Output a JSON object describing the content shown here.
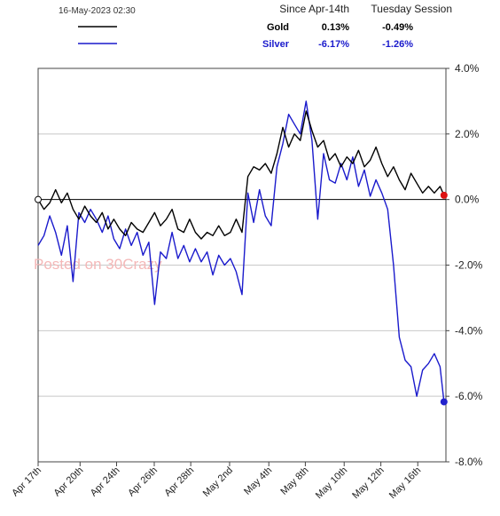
{
  "header": {
    "timestamp": "16-May-2023 02:30",
    "col_since": "Since Apr-14th",
    "col_session": "Tuesday Session"
  },
  "legend": [
    {
      "name": "Gold",
      "since": "0.13%",
      "session": "-0.49%",
      "color": "#000000"
    },
    {
      "name": "Silver",
      "since": "-6.17%",
      "session": "-1.26%",
      "color": "#1a1acc"
    }
  ],
  "watermark": {
    "text": "Posted on 30Crazy",
    "color": "#f4b8b8"
  },
  "chart_data": {
    "type": "line",
    "title": "",
    "xlabel": "",
    "ylabel": "",
    "ylim": [
      -8,
      4
    ],
    "y_ticks": [
      4,
      2,
      0,
      -2,
      -4,
      -6,
      -8
    ],
    "y_tick_labels": [
      "4.0%",
      "2.0%",
      "0.0%",
      "-2.0%",
      "-4.0%",
      "-6.0%",
      "-8.0%"
    ],
    "y_axis_side": "right",
    "x_range": [
      0,
      21
    ],
    "x_tick_labels": [
      "Apr 17th",
      "Apr 20th",
      "Apr 24th",
      "Apr 26th",
      "Apr 28th",
      "May 2nd",
      "May 4th",
      "May 8th",
      "May 10th",
      "May 12th",
      "May 16th"
    ],
    "x_tick_positions": [
      0,
      2.16,
      4.04,
      5.98,
      7.86,
      9.86,
      11.88,
      13.76,
      15.76,
      17.65,
      19.55
    ],
    "grid": true,
    "legend_position": "top",
    "series": [
      {
        "name": "Gold",
        "color": "#000000",
        "points": [
          [
            0,
            0
          ],
          [
            0.3,
            -0.3
          ],
          [
            0.6,
            -0.1
          ],
          [
            0.9,
            0.3
          ],
          [
            1.2,
            -0.1
          ],
          [
            1.5,
            0.2
          ],
          [
            1.8,
            -0.3
          ],
          [
            2.1,
            -0.6
          ],
          [
            2.4,
            -0.2
          ],
          [
            2.7,
            -0.5
          ],
          [
            3.0,
            -0.7
          ],
          [
            3.3,
            -0.4
          ],
          [
            3.6,
            -0.9
          ],
          [
            3.9,
            -0.6
          ],
          [
            4.2,
            -0.9
          ],
          [
            4.5,
            -1.1
          ],
          [
            4.8,
            -0.7
          ],
          [
            5.1,
            -0.9
          ],
          [
            5.4,
            -1.0
          ],
          [
            5.7,
            -0.7
          ],
          [
            6.0,
            -0.4
          ],
          [
            6.3,
            -0.8
          ],
          [
            6.6,
            -0.6
          ],
          [
            6.9,
            -0.3
          ],
          [
            7.2,
            -0.9
          ],
          [
            7.5,
            -1.0
          ],
          [
            7.8,
            -0.6
          ],
          [
            8.1,
            -1.0
          ],
          [
            8.4,
            -1.2
          ],
          [
            8.7,
            -1.0
          ],
          [
            9.0,
            -1.1
          ],
          [
            9.3,
            -0.8
          ],
          [
            9.6,
            -1.1
          ],
          [
            9.9,
            -1.0
          ],
          [
            10.2,
            -0.6
          ],
          [
            10.5,
            -1.0
          ],
          [
            10.8,
            0.7
          ],
          [
            11.1,
            1.0
          ],
          [
            11.4,
            0.9
          ],
          [
            11.7,
            1.1
          ],
          [
            12.0,
            0.8
          ],
          [
            12.3,
            1.4
          ],
          [
            12.6,
            2.2
          ],
          [
            12.9,
            1.6
          ],
          [
            13.2,
            2.0
          ],
          [
            13.5,
            1.8
          ],
          [
            13.8,
            2.7
          ],
          [
            14.1,
            2.1
          ],
          [
            14.4,
            1.6
          ],
          [
            14.7,
            1.8
          ],
          [
            15.0,
            1.2
          ],
          [
            15.3,
            1.4
          ],
          [
            15.6,
            1.0
          ],
          [
            15.9,
            1.3
          ],
          [
            16.2,
            1.1
          ],
          [
            16.5,
            1.5
          ],
          [
            16.8,
            1.0
          ],
          [
            17.1,
            1.2
          ],
          [
            17.4,
            1.6
          ],
          [
            17.7,
            1.1
          ],
          [
            18.0,
            0.7
          ],
          [
            18.3,
            1.0
          ],
          [
            18.6,
            0.6
          ],
          [
            18.9,
            0.3
          ],
          [
            19.2,
            0.8
          ],
          [
            19.5,
            0.5
          ],
          [
            19.8,
            0.2
          ],
          [
            20.1,
            0.4
          ],
          [
            20.4,
            0.2
          ],
          [
            20.7,
            0.4
          ],
          [
            20.9,
            0.13
          ]
        ]
      },
      {
        "name": "Silver",
        "color": "#1a1acc",
        "points": [
          [
            0,
            -1.4
          ],
          [
            0.3,
            -1.1
          ],
          [
            0.6,
            -0.5
          ],
          [
            0.9,
            -1.0
          ],
          [
            1.2,
            -1.7
          ],
          [
            1.5,
            -0.8
          ],
          [
            1.8,
            -2.5
          ],
          [
            2.1,
            -0.4
          ],
          [
            2.4,
            -0.7
          ],
          [
            2.7,
            -0.3
          ],
          [
            3.0,
            -0.6
          ],
          [
            3.3,
            -1.0
          ],
          [
            3.6,
            -0.5
          ],
          [
            3.9,
            -1.2
          ],
          [
            4.2,
            -1.5
          ],
          [
            4.5,
            -0.9
          ],
          [
            4.8,
            -1.4
          ],
          [
            5.1,
            -1.0
          ],
          [
            5.4,
            -1.7
          ],
          [
            5.7,
            -1.3
          ],
          [
            6.0,
            -3.2
          ],
          [
            6.3,
            -1.6
          ],
          [
            6.6,
            -1.8
          ],
          [
            6.9,
            -1.0
          ],
          [
            7.2,
            -1.8
          ],
          [
            7.5,
            -1.4
          ],
          [
            7.8,
            -1.9
          ],
          [
            8.1,
            -1.5
          ],
          [
            8.4,
            -1.9
          ],
          [
            8.7,
            -1.6
          ],
          [
            9.0,
            -2.3
          ],
          [
            9.3,
            -1.7
          ],
          [
            9.6,
            -2.0
          ],
          [
            9.9,
            -1.8
          ],
          [
            10.2,
            -2.2
          ],
          [
            10.5,
            -2.9
          ],
          [
            10.8,
            0.2
          ],
          [
            11.1,
            -0.7
          ],
          [
            11.4,
            0.3
          ],
          [
            11.7,
            -0.5
          ],
          [
            12.0,
            -0.8
          ],
          [
            12.3,
            1.0
          ],
          [
            12.6,
            1.7
          ],
          [
            12.9,
            2.6
          ],
          [
            13.2,
            2.3
          ],
          [
            13.5,
            2.0
          ],
          [
            13.8,
            3.0
          ],
          [
            14.1,
            1.8
          ],
          [
            14.4,
            -0.6
          ],
          [
            14.7,
            1.4
          ],
          [
            15.0,
            0.6
          ],
          [
            15.3,
            0.5
          ],
          [
            15.6,
            1.1
          ],
          [
            15.9,
            0.6
          ],
          [
            16.2,
            1.3
          ],
          [
            16.5,
            0.4
          ],
          [
            16.8,
            0.9
          ],
          [
            17.1,
            0.1
          ],
          [
            17.4,
            0.6
          ],
          [
            17.7,
            0.2
          ],
          [
            18.0,
            -0.3
          ],
          [
            18.3,
            -2.0
          ],
          [
            18.6,
            -4.2
          ],
          [
            18.9,
            -4.9
          ],
          [
            19.2,
            -5.1
          ],
          [
            19.5,
            -6.0
          ],
          [
            19.8,
            -5.2
          ],
          [
            20.1,
            -5.0
          ],
          [
            20.4,
            -4.7
          ],
          [
            20.7,
            -5.1
          ],
          [
            20.9,
            -6.17
          ]
        ]
      }
    ]
  }
}
